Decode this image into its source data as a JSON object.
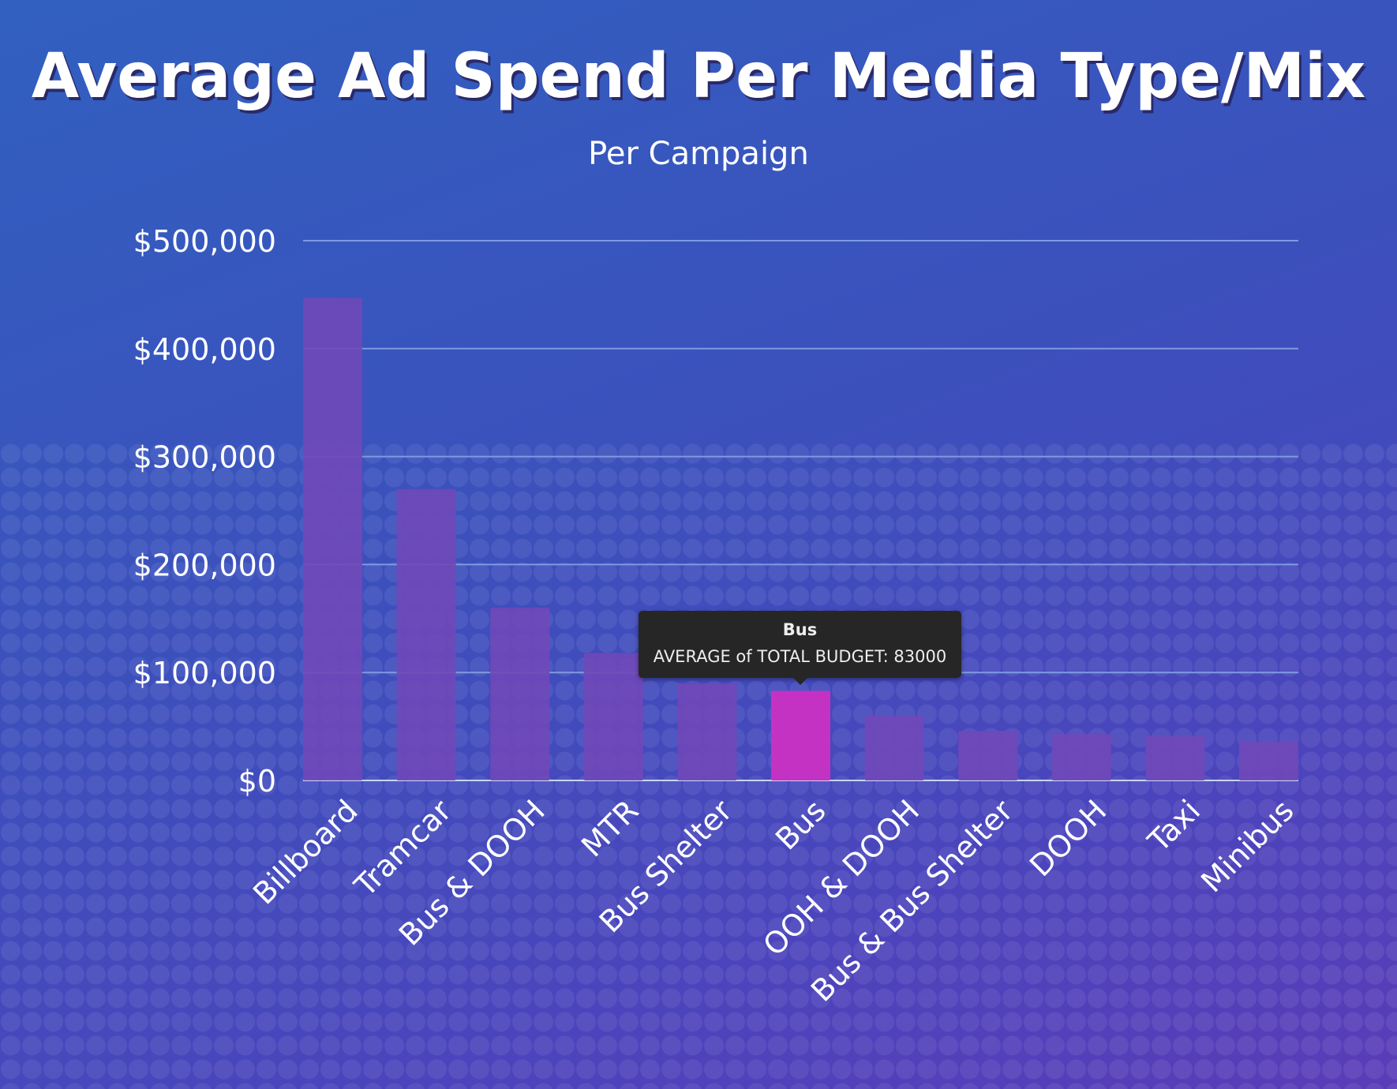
{
  "chart_data": {
    "type": "bar",
    "title": "Average Ad Spend Per Media Type/Mix",
    "subtitle": "Per Campaign",
    "xlabel": "",
    "ylabel": "",
    "ylim": [
      0,
      500000
    ],
    "yticks": [
      0,
      100000,
      200000,
      300000,
      400000,
      500000
    ],
    "ytick_labels": [
      "$0",
      "$100,000",
      "$200,000",
      "$300,000",
      "$400,000",
      "$500,000"
    ],
    "grid": true,
    "categories": [
      "Billboard",
      "Tramcar",
      "Bus & DOOH",
      "MTR",
      "Bus Shelter",
      "Bus",
      "OOH & DOOH",
      "Bus & Bus Shelter",
      "DOOH",
      "Taxi",
      "Minibus"
    ],
    "values": [
      447000,
      270000,
      160000,
      118000,
      90000,
      83000,
      60000,
      46000,
      43000,
      41000,
      36000
    ],
    "highlighted": "Bus",
    "colors": {
      "bar": "#7048b8",
      "highlight": "#c432c4",
      "grid": "#7f9ae0"
    },
    "tooltip": {
      "title": "Bus",
      "text": "AVERAGE of TOTAL BUDGET: 83000"
    }
  }
}
